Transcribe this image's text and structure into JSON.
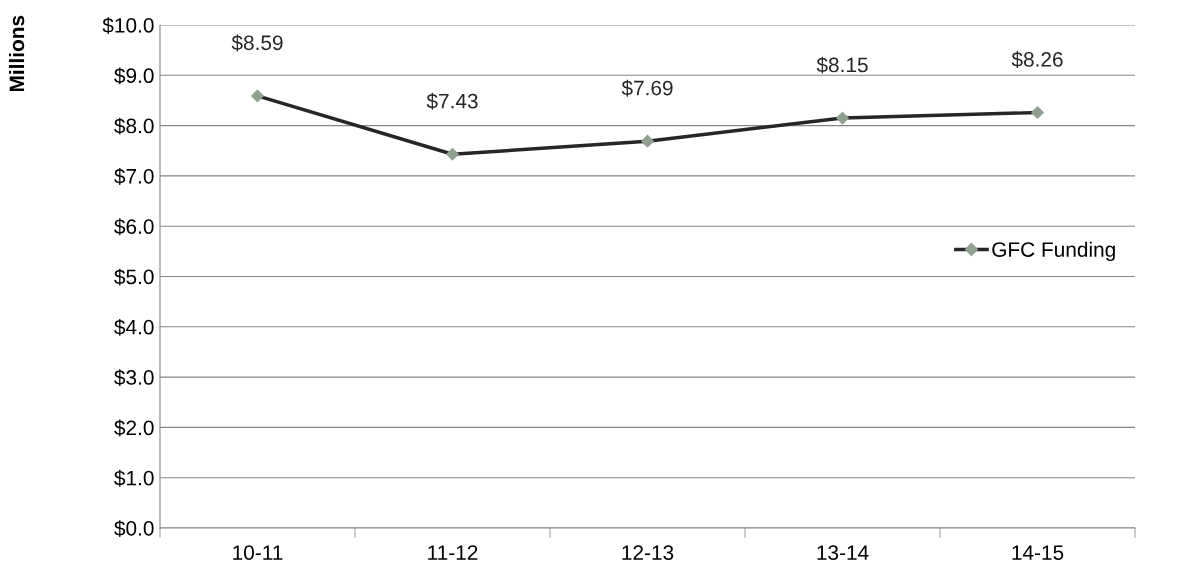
{
  "chart_data": {
    "type": "line",
    "ylabel": "Millions",
    "categories": [
      "10-11",
      "11-12",
      "12-13",
      "13-14",
      "14-15"
    ],
    "series": [
      {
        "name": "GFC Funding",
        "color": "#262626",
        "colors": [
          "#8fa08f",
          "#8fa08f",
          "#8fa08f",
          "#8fa08f",
          "#8fa08f"
        ],
        "values": [
          8.59,
          7.43,
          7.69,
          8.15,
          8.26
        ],
        "value_labels": [
          "$8.59",
          "$7.43",
          "$7.69",
          "$8.15",
          "$8.26"
        ]
      }
    ],
    "ylim": [
      0,
      10
    ],
    "yticks": [
      {
        "value": 0,
        "label": "$0.0"
      },
      {
        "value": 1,
        "label": "$1.0"
      },
      {
        "value": 2,
        "label": "$2.0"
      },
      {
        "value": 3,
        "label": "$3.0"
      },
      {
        "value": 4,
        "label": "$4.0"
      },
      {
        "value": 5,
        "label": "$5.0"
      },
      {
        "value": 6,
        "label": "$6.0"
      },
      {
        "value": 7,
        "label": "$7.0"
      },
      {
        "value": 8,
        "label": "$8.0"
      },
      {
        "value": 9,
        "label": "$9.0"
      },
      {
        "value": 10,
        "label": "$10.0"
      }
    ],
    "grid": "y",
    "legend": "right",
    "marker": "diamond",
    "line_style": "solid"
  }
}
